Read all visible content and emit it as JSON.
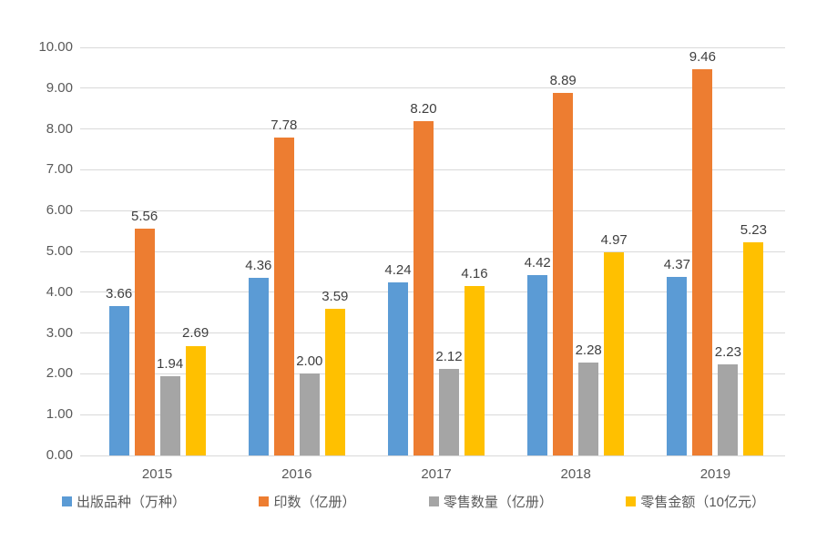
{
  "chart_data": {
    "type": "bar",
    "title": "",
    "categories": [
      "2015",
      "2016",
      "2017",
      "2018",
      "2019"
    ],
    "series": [
      {
        "name": "出版品种（万种）",
        "color": "#5B9BD5",
        "values": [
          3.66,
          4.36,
          4.24,
          4.42,
          4.37
        ]
      },
      {
        "name": "印数（亿册）",
        "color": "#ED7D31",
        "values": [
          5.56,
          7.78,
          8.2,
          8.89,
          9.46
        ]
      },
      {
        "name": "零售数量（亿册）",
        "color": "#A5A5A5",
        "values": [
          1.94,
          2.0,
          2.12,
          2.28,
          2.23
        ]
      },
      {
        "name": "零售金额（10亿元）",
        "color": "#FFC000",
        "values": [
          2.69,
          3.59,
          4.16,
          4.97,
          5.23
        ]
      }
    ],
    "ylim": [
      0,
      10
    ],
    "ytick_step": 1,
    "ytick_labels": [
      "0.00",
      "1.00",
      "2.00",
      "3.00",
      "4.00",
      "5.00",
      "6.00",
      "7.00",
      "8.00",
      "9.00",
      "10.00"
    ],
    "value_label_decimals": 2,
    "grid": true,
    "legend_position": "bottom",
    "colors": {
      "grid_line": "#d9d9d9",
      "axis_text": "#595959",
      "value_label_text": "#3f3f3f",
      "background": "#ffffff"
    }
  }
}
